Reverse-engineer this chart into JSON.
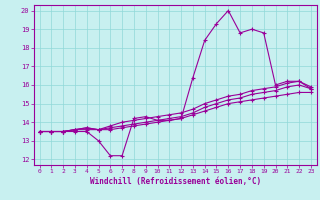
{
  "xlabel": "Windchill (Refroidissement éolien,°C)",
  "bg_color": "#c8f0f0",
  "line_color": "#990099",
  "grid_color": "#90d8d8",
  "xlim": [
    -0.5,
    23.5
  ],
  "ylim": [
    11.7,
    20.3
  ],
  "xticks": [
    0,
    1,
    2,
    3,
    4,
    5,
    6,
    7,
    8,
    9,
    10,
    11,
    12,
    13,
    14,
    15,
    16,
    17,
    18,
    19,
    20,
    21,
    22,
    23
  ],
  "yticks": [
    12,
    13,
    14,
    15,
    16,
    17,
    18,
    19,
    20
  ],
  "series1": {
    "x": [
      0,
      1,
      2,
      3,
      4,
      5,
      6,
      7,
      8,
      9,
      10,
      11,
      12,
      13,
      14,
      15,
      16,
      17,
      18,
      19,
      20,
      21,
      22,
      23
    ],
    "y": [
      13.5,
      13.5,
      13.5,
      13.5,
      13.5,
      13.0,
      12.2,
      12.2,
      14.2,
      14.3,
      14.1,
      14.1,
      14.2,
      16.4,
      18.4,
      19.3,
      20.0,
      18.8,
      19.0,
      18.8,
      16.0,
      16.2,
      16.2,
      15.8
    ]
  },
  "series2": {
    "x": [
      0,
      1,
      2,
      3,
      4,
      5,
      6,
      7,
      8,
      9,
      10,
      11,
      12,
      13,
      14,
      15,
      16,
      17,
      18,
      19,
      20,
      21,
      22,
      23
    ],
    "y": [
      13.5,
      13.5,
      13.5,
      13.6,
      13.6,
      13.6,
      13.6,
      13.7,
      13.8,
      13.9,
      14.0,
      14.1,
      14.2,
      14.4,
      14.6,
      14.8,
      15.0,
      15.1,
      15.2,
      15.3,
      15.4,
      15.5,
      15.6,
      15.6
    ]
  },
  "series3": {
    "x": [
      0,
      1,
      2,
      3,
      4,
      5,
      6,
      7,
      8,
      9,
      10,
      11,
      12,
      13,
      14,
      15,
      16,
      17,
      18,
      19,
      20,
      21,
      22,
      23
    ],
    "y": [
      13.5,
      13.5,
      13.5,
      13.6,
      13.7,
      13.6,
      13.7,
      13.8,
      13.9,
      14.0,
      14.1,
      14.2,
      14.3,
      14.5,
      14.8,
      15.0,
      15.2,
      15.3,
      15.5,
      15.6,
      15.7,
      15.9,
      16.0,
      15.8
    ]
  },
  "series4": {
    "x": [
      0,
      1,
      2,
      3,
      4,
      5,
      6,
      7,
      8,
      9,
      10,
      11,
      12,
      13,
      14,
      15,
      16,
      17,
      18,
      19,
      20,
      21,
      22,
      23
    ],
    "y": [
      13.5,
      13.5,
      13.5,
      13.6,
      13.7,
      13.6,
      13.8,
      14.0,
      14.1,
      14.2,
      14.3,
      14.4,
      14.5,
      14.7,
      15.0,
      15.2,
      15.4,
      15.5,
      15.7,
      15.8,
      15.9,
      16.1,
      16.2,
      15.9
    ]
  }
}
